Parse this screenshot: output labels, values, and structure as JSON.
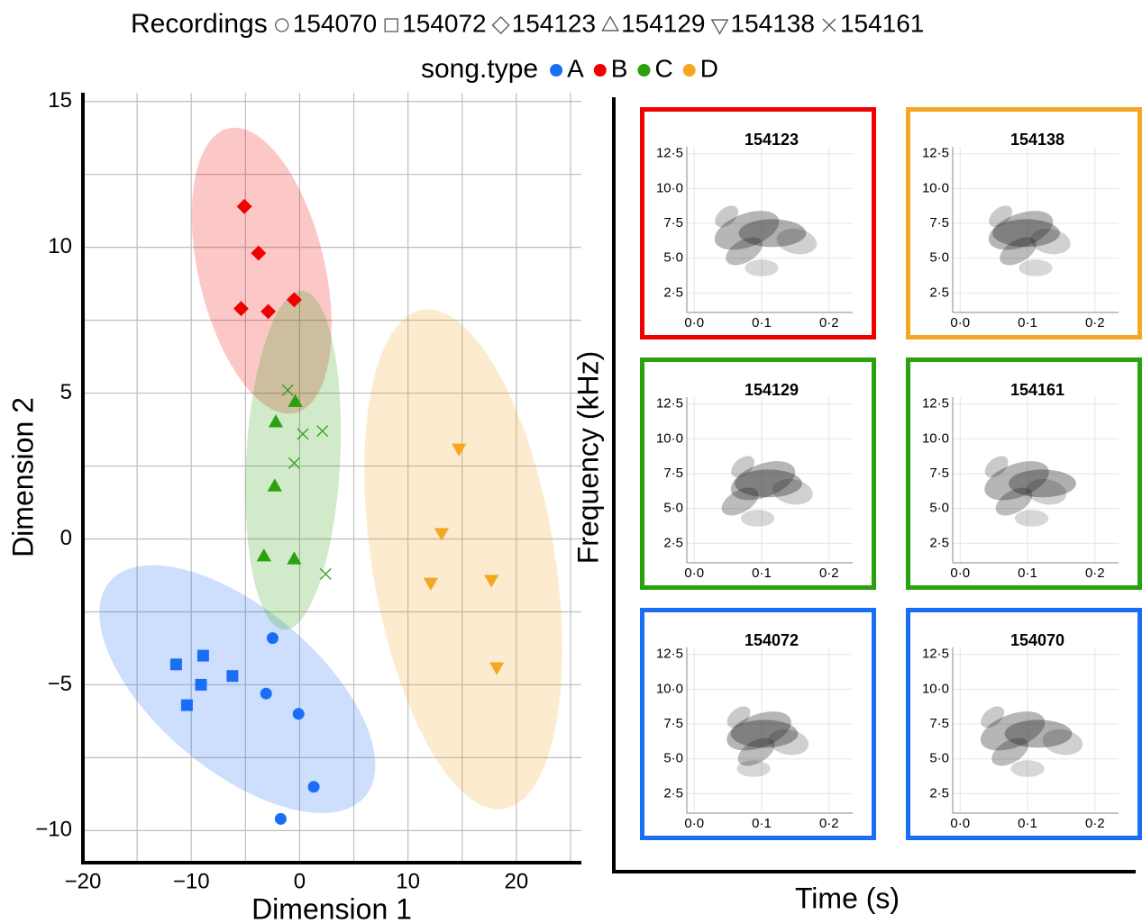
{
  "chart_data": [
    {
      "type": "scatter",
      "legend_title": "Recordings",
      "song_type_title": "song.type",
      "xlabel": "Dimension 1",
      "ylabel": "Dimension 2",
      "xlim": [
        -20,
        26
      ],
      "ylim": [
        -11.1,
        15.3
      ],
      "xticks": [
        {
          "value": -20,
          "label": "−20"
        },
        {
          "value": -10,
          "label": "−10"
        },
        0,
        10,
        20
      ],
      "yticks": [
        {
          "value": -10,
          "label": "−10"
        },
        {
          "value": -5,
          "label": "−5"
        },
        0,
        5,
        10,
        15
      ],
      "xgrid": [
        -15,
        -5,
        5,
        15,
        25
      ],
      "ygrid": [
        -7.5,
        -2.5,
        2.5,
        7.5,
        12.5
      ],
      "grid": true,
      "song_types": [
        {
          "name": "A",
          "color": "#1a6ef5",
          "ellipse": {
            "center": [
              -5.75,
              -5.15
            ],
            "axis1": [
              11.8,
              -3.68
            ],
            "axis2": [
              -4.8,
              -2.13
            ]
          }
        },
        {
          "name": "B",
          "color": "#f00000",
          "ellipse": {
            "center": [
              -3.5,
              9.2
            ],
            "axis1": [
              -3.08,
              4.88
            ],
            "axis2": [
              5.67,
              0.49
            ]
          }
        },
        {
          "name": "C",
          "color": "#2aa10f",
          "ellipse": {
            "center": [
              -0.6,
              2.7
            ],
            "axis1": [
              0.83,
              5.81
            ],
            "axis2": [
              4.33,
              -0.09
            ]
          }
        },
        {
          "name": "D",
          "color": "#f5a623",
          "ellipse": {
            "center": [
              15.1,
              -0.7
            ],
            "axis1": [
              -3.75,
              8.56
            ],
            "axis2": [
              8.33,
              0.49
            ]
          }
        }
      ],
      "series": [
        {
          "name": "154070",
          "marker": "circle",
          "color": "#1a6ef5",
          "x": [
            -2.5,
            -3.1,
            -0.1,
            1.3,
            -1.75
          ],
          "y": [
            -3.4,
            -5.3,
            -6.0,
            -8.5,
            -9.6
          ]
        },
        {
          "name": "154072",
          "marker": "square",
          "color": "#1a6ef5",
          "x": [
            -11.4,
            -8.9,
            -9.1,
            -6.2,
            -10.4
          ],
          "y": [
            -4.3,
            -4.0,
            -5.0,
            -4.7,
            -5.7
          ]
        },
        {
          "name": "154123",
          "marker": "diamond",
          "color": "#f00000",
          "x": [
            -5.1,
            -3.8,
            -5.4,
            -2.9,
            -0.5
          ],
          "y": [
            11.4,
            9.8,
            7.9,
            7.8,
            8.2
          ]
        },
        {
          "name": "154129",
          "marker": "triangle-up",
          "color": "#2aa10f",
          "x": [
            -0.4,
            -2.2,
            -2.3,
            -3.3,
            -0.5
          ],
          "y": [
            4.7,
            4.0,
            1.8,
            -0.6,
            -0.7
          ]
        },
        {
          "name": "154138",
          "marker": "triangle-down",
          "color": "#f5a623",
          "x": [
            14.7,
            13.1,
            12.1,
            17.7,
            18.2
          ],
          "y": [
            3.1,
            0.2,
            -1.5,
            -1.4,
            -4.4
          ]
        },
        {
          "name": "154161",
          "marker": "x",
          "color": "#2aa10f",
          "x": [
            -1.1,
            0.3,
            2.1,
            -0.5,
            2.4
          ],
          "y": [
            5.1,
            3.6,
            3.7,
            2.6,
            -1.2
          ]
        }
      ]
    },
    {
      "type": "spectrogram",
      "xlabel": "Time (s)",
      "ylabel": "Frequency (kHz)",
      "xlim": [
        -0.011,
        0.235
      ],
      "ylim": [
        1.1,
        13
      ],
      "xticks": [
        {
          "value": 0,
          "label": "0·0"
        },
        {
          "value": 0.1,
          "label": "0·1"
        },
        {
          "value": 0.2,
          "label": "0·2"
        }
      ],
      "yticks": [
        {
          "value": 2.5,
          "label": "2·5"
        },
        {
          "value": 5,
          "label": "5·0"
        },
        {
          "value": 7.5,
          "label": "7·5"
        },
        {
          "value": 10,
          "label": "10·0"
        },
        {
          "value": 12.5,
          "label": "12·5"
        }
      ],
      "panels": [
        {
          "title": "154123",
          "color": "#f00000"
        },
        {
          "title": "154138",
          "color": "#f5a623"
        },
        {
          "title": "154129",
          "color": "#2aa10f"
        },
        {
          "title": "154161",
          "color": "#2aa10f"
        },
        {
          "title": "154072",
          "color": "#1a6ef5"
        },
        {
          "title": "154070",
          "color": "#1a6ef5"
        }
      ]
    }
  ]
}
